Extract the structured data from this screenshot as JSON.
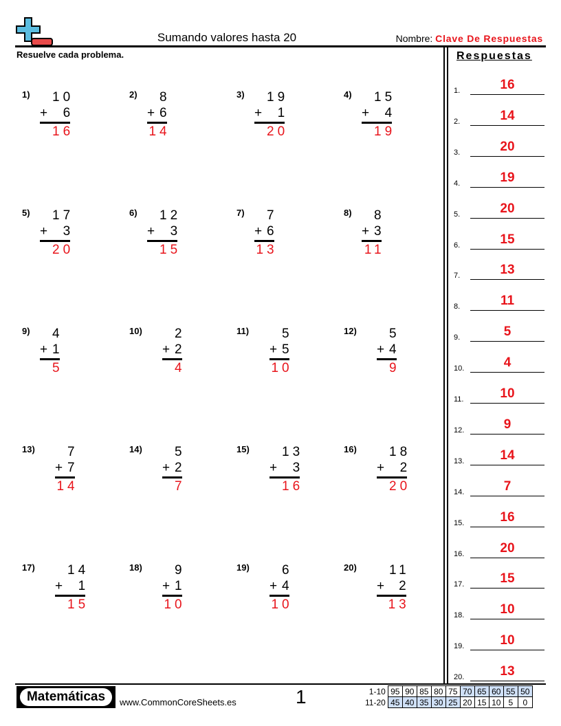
{
  "header": {
    "title": "Sumando valores hasta 20",
    "name_label": "Nombre:",
    "name_value": "Clave De Respuestas",
    "instructions": "Resuelve cada problema."
  },
  "colors": {
    "answer": "#e8141b",
    "logo_plus": "#5bbde0",
    "logo_minus": "#e84a4a",
    "score_highlight": "#cfe0f7"
  },
  "problems": [
    {
      "n": "1)",
      "a": "10",
      "b": "6",
      "ans": "16"
    },
    {
      "n": "2)",
      "a": "8",
      "b": "6",
      "ans": "14"
    },
    {
      "n": "3)",
      "a": "19",
      "b": "1",
      "ans": "20"
    },
    {
      "n": "4)",
      "a": "15",
      "b": "4",
      "ans": "19"
    },
    {
      "n": "5)",
      "a": "17",
      "b": "3",
      "ans": "20"
    },
    {
      "n": "6)",
      "a": "12",
      "b": "3",
      "ans": "15"
    },
    {
      "n": "7)",
      "a": "7",
      "b": "6",
      "ans": "13"
    },
    {
      "n": "8)",
      "a": "8",
      "b": "3",
      "ans": "11"
    },
    {
      "n": "9)",
      "a": "4",
      "b": "1",
      "ans": "5"
    },
    {
      "n": "10)",
      "a": "2",
      "b": "2",
      "ans": "4"
    },
    {
      "n": "11)",
      "a": "5",
      "b": "5",
      "ans": "10"
    },
    {
      "n": "12)",
      "a": "5",
      "b": "4",
      "ans": "9"
    },
    {
      "n": "13)",
      "a": "7",
      "b": "7",
      "ans": "14"
    },
    {
      "n": "14)",
      "a": "5",
      "b": "2",
      "ans": "7"
    },
    {
      "n": "15)",
      "a": "13",
      "b": "3",
      "ans": "16"
    },
    {
      "n": "16)",
      "a": "18",
      "b": "2",
      "ans": "20"
    },
    {
      "n": "17)",
      "a": "14",
      "b": "1",
      "ans": "15"
    },
    {
      "n": "18)",
      "a": "9",
      "b": "1",
      "ans": "10"
    },
    {
      "n": "19)",
      "a": "6",
      "b": "4",
      "ans": "10"
    },
    {
      "n": "20)",
      "a": "11",
      "b": "2",
      "ans": "13"
    }
  ],
  "plus_sign": "+",
  "answers": {
    "title": "Respuestas",
    "items": [
      {
        "label": "1.",
        "value": "16"
      },
      {
        "label": "2.",
        "value": "14"
      },
      {
        "label": "3.",
        "value": "20"
      },
      {
        "label": "4.",
        "value": "19"
      },
      {
        "label": "5.",
        "value": "20"
      },
      {
        "label": "6.",
        "value": "15"
      },
      {
        "label": "7.",
        "value": "13"
      },
      {
        "label": "8.",
        "value": "11"
      },
      {
        "label": "9.",
        "value": "5"
      },
      {
        "label": "10.",
        "value": "4"
      },
      {
        "label": "11.",
        "value": "10"
      },
      {
        "label": "12.",
        "value": "9"
      },
      {
        "label": "13.",
        "value": "14"
      },
      {
        "label": "14.",
        "value": "7"
      },
      {
        "label": "15.",
        "value": "16"
      },
      {
        "label": "16.",
        "value": "20"
      },
      {
        "label": "17.",
        "value": "15"
      },
      {
        "label": "18.",
        "value": "10"
      },
      {
        "label": "19.",
        "value": "10"
      },
      {
        "label": "20.",
        "value": "13"
      }
    ]
  },
  "footer": {
    "brand": "Matemáticas",
    "site": "www.CommonCoreSheets.es",
    "page": "1",
    "score_rows": [
      {
        "label": "1-10",
        "values": [
          "95",
          "90",
          "85",
          "80",
          "75",
          "70",
          "65",
          "60",
          "55",
          "50"
        ],
        "highlighted": [
          false,
          false,
          false,
          false,
          false,
          true,
          true,
          true,
          true,
          true
        ]
      },
      {
        "label": "11-20",
        "values": [
          "45",
          "40",
          "35",
          "30",
          "25",
          "20",
          "15",
          "10",
          "5",
          "0"
        ],
        "highlighted": [
          true,
          true,
          true,
          true,
          true,
          false,
          false,
          false,
          false,
          false
        ]
      }
    ]
  }
}
